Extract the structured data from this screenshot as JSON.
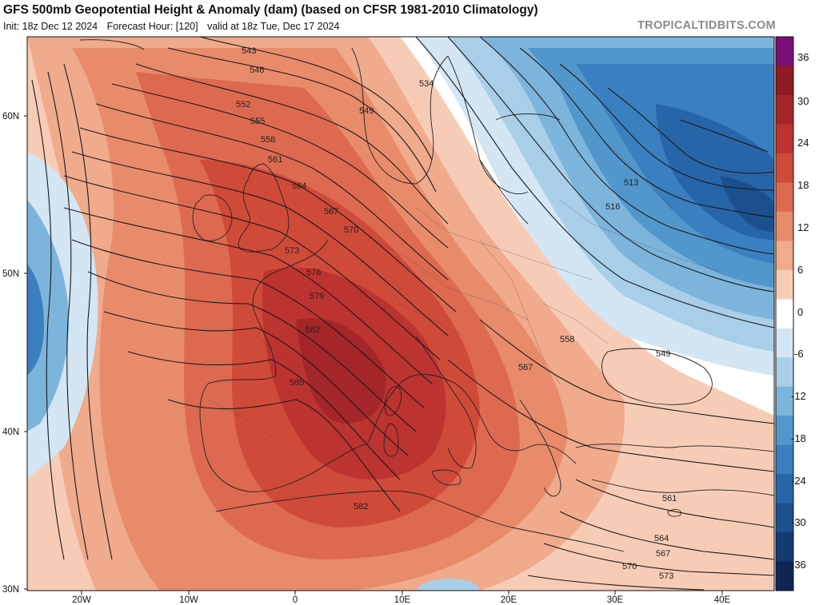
{
  "header": {
    "title": "GFS 500mb Geopotential Height & Anomaly (dam) (based on CFSR 1981-2010 Climatology)",
    "init": "Init: 18z Dec 12 2024",
    "forecast_hour": "Forecast Hour: [120]",
    "valid": "valid at 18z Tue, Dec 17 2024",
    "brand": "TROPICALTIDBITS.COM"
  },
  "axes": {
    "lat_labels": [
      "30N",
      "40N",
      "50N",
      "60N"
    ],
    "lon_labels": [
      "20W",
      "10W",
      "0",
      "10E",
      "20E",
      "30E",
      "40E"
    ]
  },
  "colorbar": {
    "ticks": [
      "36",
      "30",
      "24",
      "18",
      "12",
      "6",
      "0",
      "-6",
      "-12",
      "-18",
      "-24",
      "-30",
      "-36"
    ],
    "colors": [
      "#7a0f78",
      "#8e1a26",
      "#a52628",
      "#bd332f",
      "#d04a3a",
      "#dd6a50",
      "#e88b6b",
      "#f0aa8c",
      "#f7ccb6",
      "#ffffff",
      "#d4e6f4",
      "#a9cfe8",
      "#7db4dc",
      "#5197cb",
      "#3a7fbf",
      "#2765a9",
      "#1c4f8e",
      "#143a71",
      "#0d2655"
    ]
  },
  "height_labels": [
    "543",
    "546",
    "552",
    "555",
    "558",
    "561",
    "564",
    "567",
    "570",
    "573",
    "576",
    "579",
    "582",
    "585",
    "534",
    "549",
    "513",
    "516",
    "558",
    "567",
    "549",
    "561",
    "564",
    "567",
    "570",
    "573",
    "582"
  ],
  "colors": {
    "ridge": "#c93a33",
    "trough": "#2a6aae",
    "land": "#2a2a2a"
  }
}
